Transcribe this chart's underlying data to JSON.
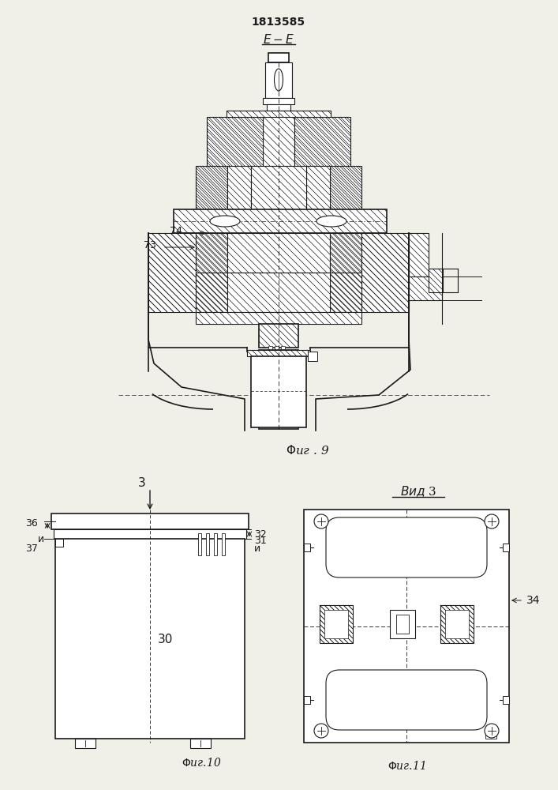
{
  "title": "1813585",
  "bg_color": "#f0efe8",
  "line_color": "#1a1a1a",
  "label_73": "73",
  "label_74": "74",
  "label_30": "30",
  "label_31": "31",
  "label_32": "32",
  "label_34": "34",
  "label_36": "36",
  "label_37": "37",
  "label_3": "3",
  "label_u": "и"
}
